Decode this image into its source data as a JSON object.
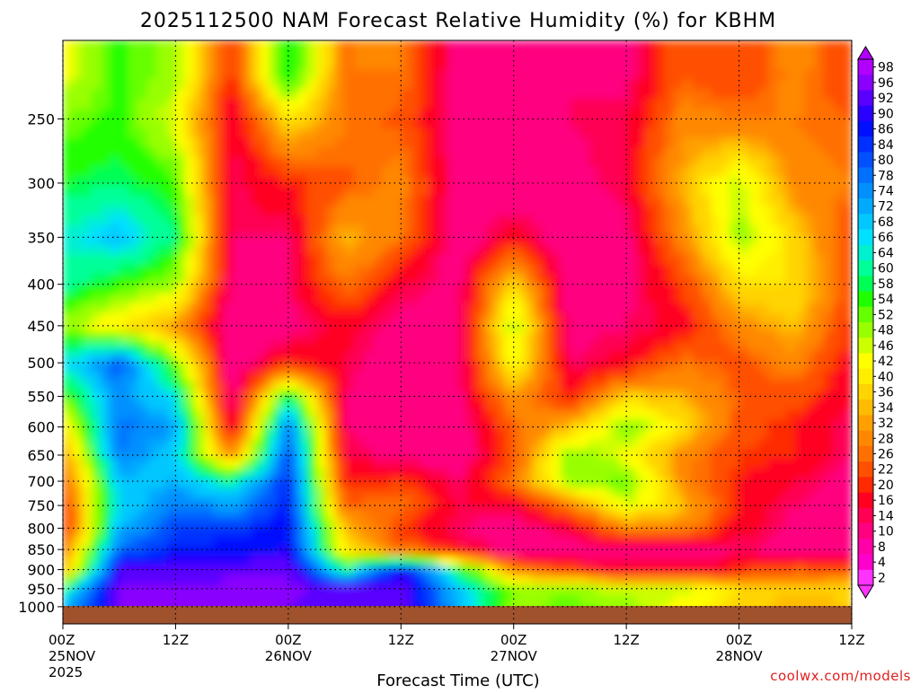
{
  "chart_data": {
    "type": "heatmap",
    "title": "2025112500 NAM Forecast Relative Humidity (%) for KBHM",
    "xlabel": "Forecast Time (UTC)",
    "ylabel": "",
    "credit": "coolwx.com/models",
    "y_axis": {
      "unit": "mb",
      "scale": "log",
      "inverted": true,
      "range": [
        200,
        1050
      ],
      "ticks": [
        250,
        300,
        350,
        400,
        450,
        500,
        550,
        600,
        650,
        700,
        750,
        800,
        850,
        900,
        950,
        1000
      ]
    },
    "x_axis": {
      "range_hours": [
        0,
        84
      ],
      "ticks": [
        {
          "hour": 0,
          "lines": [
            "00Z",
            "25NOV",
            "2025"
          ]
        },
        {
          "hour": 12,
          "lines": [
            "12Z"
          ]
        },
        {
          "hour": 24,
          "lines": [
            "00Z",
            "26NOV"
          ]
        },
        {
          "hour": 36,
          "lines": [
            "12Z"
          ]
        },
        {
          "hour": 48,
          "lines": [
            "00Z",
            "27NOV"
          ]
        },
        {
          "hour": 60,
          "lines": [
            "12Z"
          ]
        },
        {
          "hour": 72,
          "lines": [
            "00Z",
            "28NOV"
          ]
        },
        {
          "hour": 84,
          "lines": [
            "12Z"
          ]
        }
      ]
    },
    "grid": true,
    "ground": {
      "color": "#a0522d",
      "pressure_mb": [
        998,
        1050
      ]
    },
    "colorbar": {
      "labels": [
        98,
        96,
        92,
        90,
        86,
        84,
        80,
        78,
        74,
        72,
        68,
        66,
        64,
        60,
        58,
        54,
        52,
        48,
        46,
        42,
        40,
        36,
        34,
        32,
        28,
        26,
        22,
        20,
        16,
        14,
        10,
        8,
        4,
        2
      ],
      "colors": [
        "#b200ff",
        "#8a00ff",
        "#5a00ff",
        "#2a00ff",
        "#0010ff",
        "#0030ff",
        "#0050ff",
        "#0070ff",
        "#0090ff",
        "#00aaff",
        "#00c8ff",
        "#00e0ff",
        "#00f0d0",
        "#00ff99",
        "#00ff55",
        "#20ff00",
        "#66ff00",
        "#99ff00",
        "#ccff00",
        "#ffff00",
        "#ffee00",
        "#ffd400",
        "#ffbb00",
        "#ffa000",
        "#ff8800",
        "#ff7000",
        "#ff5000",
        "#ff2a00",
        "#ff0020",
        "#ff0055",
        "#ff0080",
        "#ff00a8",
        "#ff00cc",
        "#ff33ff"
      ],
      "extend": "both",
      "placement": "right"
    },
    "field": {
      "description_levels_mb": [
        220,
        250,
        300,
        350,
        400,
        450,
        500,
        550,
        600,
        650,
        700,
        750,
        800,
        850,
        900,
        950,
        990
      ],
      "hours": [
        0,
        6,
        12,
        18,
        24,
        30,
        36,
        42,
        48,
        54,
        60,
        66,
        72,
        78,
        84
      ],
      "rh": [
        [
          45,
          55,
          50,
          20,
          60,
          28,
          28,
          12,
          12,
          14,
          12,
          26,
          22,
          30,
          22
        ],
        [
          52,
          55,
          45,
          15,
          40,
          28,
          25,
          12,
          10,
          14,
          16,
          30,
          28,
          28,
          26
        ],
        [
          58,
          60,
          55,
          15,
          20,
          25,
          30,
          12,
          10,
          12,
          16,
          35,
          48,
          30,
          28
        ],
        [
          65,
          70,
          60,
          14,
          14,
          35,
          28,
          10,
          18,
          10,
          12,
          30,
          50,
          38,
          22
        ],
        [
          62,
          55,
          50,
          12,
          14,
          28,
          16,
          12,
          40,
          10,
          12,
          22,
          40,
          40,
          24
        ],
        [
          50,
          40,
          32,
          10,
          12,
          18,
          12,
          12,
          50,
          12,
          14,
          18,
          30,
          36,
          20
        ],
        [
          66,
          82,
          52,
          10,
          20,
          16,
          10,
          12,
          45,
          14,
          18,
          28,
          24,
          30,
          18
        ],
        [
          52,
          76,
          66,
          10,
          60,
          14,
          10,
          12,
          32,
          20,
          38,
          34,
          26,
          24,
          16
        ],
        [
          40,
          80,
          74,
          14,
          80,
          14,
          10,
          10,
          26,
          36,
          52,
          40,
          24,
          20,
          14
        ],
        [
          30,
          78,
          68,
          30,
          84,
          16,
          12,
          10,
          24,
          52,
          44,
          30,
          22,
          20,
          14
        ],
        [
          24,
          70,
          72,
          62,
          86,
          20,
          22,
          14,
          28,
          50,
          54,
          30,
          20,
          16,
          12
        ],
        [
          20,
          68,
          78,
          74,
          88,
          26,
          28,
          16,
          16,
          28,
          46,
          36,
          20,
          14,
          12
        ],
        [
          18,
          72,
          84,
          84,
          90,
          36,
          22,
          14,
          12,
          16,
          30,
          30,
          18,
          12,
          10
        ],
        [
          26,
          80,
          86,
          88,
          90,
          40,
          26,
          18,
          10,
          10,
          12,
          12,
          14,
          12,
          12
        ],
        [
          32,
          92,
          94,
          94,
          96,
          60,
          90,
          60,
          30,
          22,
          16,
          16,
          20,
          26,
          24
        ],
        [
          60,
          96,
          96,
          98,
          98,
          92,
          96,
          70,
          52,
          50,
          46,
          48,
          40,
          36,
          40
        ],
        [
          70,
          96,
          96,
          98,
          96,
          92,
          96,
          72,
          50,
          54,
          50,
          44,
          38,
          34,
          36
        ]
      ]
    }
  }
}
